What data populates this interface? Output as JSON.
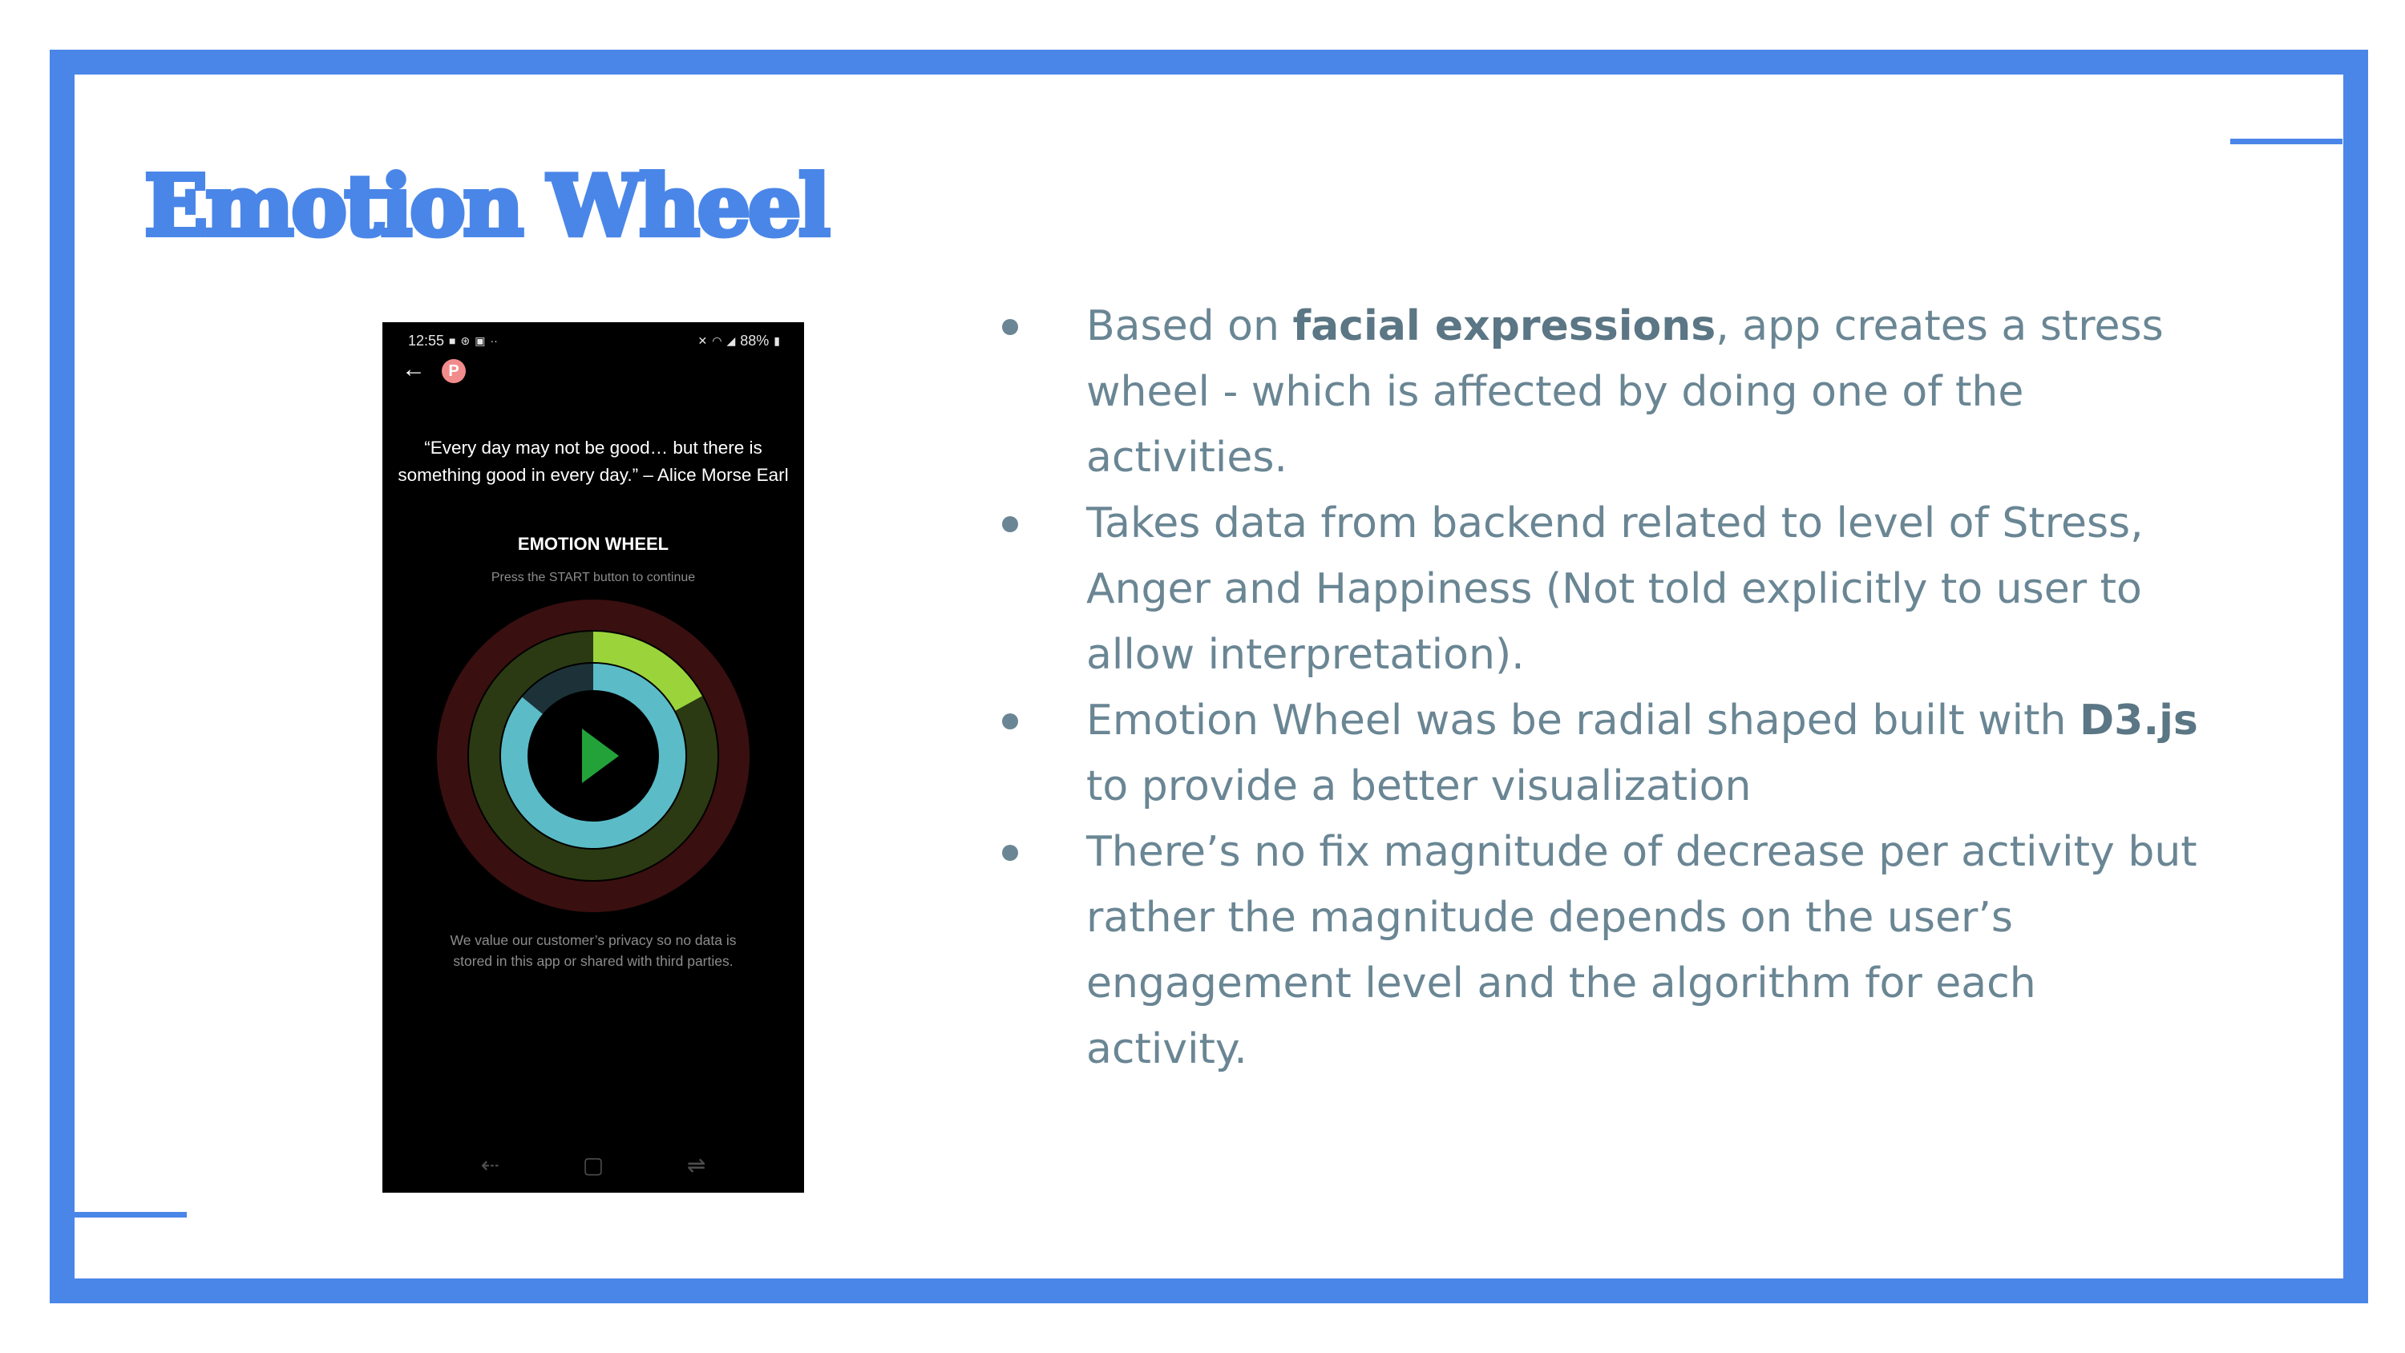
{
  "slide": {
    "title": "Emotion Wheel",
    "accent_color": "#4a86e8",
    "text_color": "#6a8694"
  },
  "phone": {
    "status": {
      "time": "12:55",
      "left_icons": [
        "video-icon",
        "a-icon",
        "image-icon",
        "more-dots-icon"
      ],
      "right_icons": [
        "mute-icon",
        "wifi-icon",
        "signal-icon"
      ],
      "battery": "88%"
    },
    "quote": "“Every day may not be good… but there is something good in every day.”  – Alice Morse Earl",
    "wheel_title": "EMOTION WHEEL",
    "wheel_subtitle": "Press the START button to continue",
    "privacy_note": "We value our customer’s privacy so no data is stored in this app or shared with third parties.",
    "rings": [
      {
        "name": "Stress",
        "fill": 0.0,
        "color": "#5c1a1a",
        "track": "#3a0f10"
      },
      {
        "name": "Happiness",
        "fill": 0.17,
        "color": "#9bd33b",
        "track": "#2b3a12"
      },
      {
        "name": "Anger",
        "fill": 0.86,
        "color": "#5bbcc8",
        "track": "#1c3238"
      }
    ],
    "play_color": "#23a23a"
  },
  "bullets": [
    {
      "parts": [
        {
          "text": "Based on ",
          "bold": false
        },
        {
          "text": "facial expressions",
          "bold": true
        },
        {
          "text": ", app creates a stress wheel - which is affected by doing one of the activities.",
          "bold": false
        }
      ]
    },
    {
      "parts": [
        {
          "text": "Takes data from backend related to level of Stress, Anger and Happiness (Not told explicitly to user to allow interpretation).",
          "bold": false
        }
      ]
    },
    {
      "parts": [
        {
          "text": "Emotion Wheel was be radial shaped built with ",
          "bold": false
        },
        {
          "text": "D3.js",
          "bold": true
        },
        {
          "text": " to provide a better visualization",
          "bold": false
        }
      ]
    },
    {
      "parts": [
        {
          "text": "There’s no fix magnitude of decrease per activity but rather the magnitude depends on the user’s engagement level and the algorithm for each activity.",
          "bold": false
        }
      ]
    }
  ]
}
